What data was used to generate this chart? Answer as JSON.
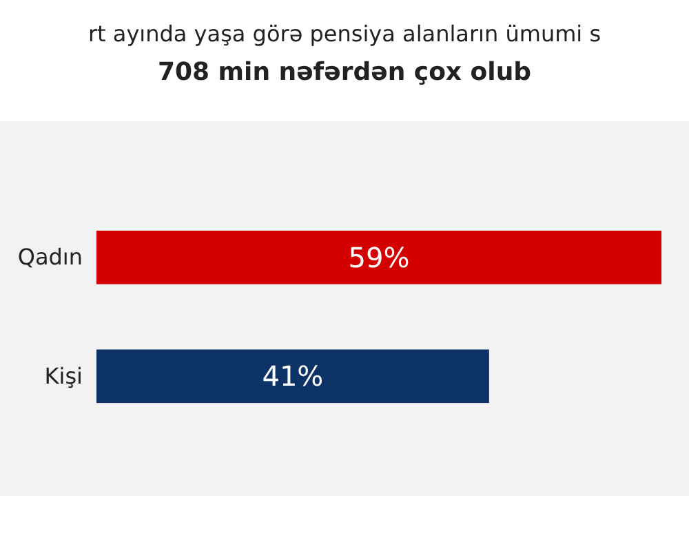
{
  "chart_data": {
    "type": "bar",
    "orientation": "horizontal",
    "title": "rt ayında yaşa görə pensiya alanların ümumi s",
    "subtitle": "708 min nəfərdən çox olub",
    "categories": [
      "Qadın",
      "Kişi"
    ],
    "values": [
      59,
      41
    ],
    "colors": [
      "#d30000",
      "#0c3266"
    ],
    "value_labels": [
      "59%",
      "41%"
    ],
    "tick_labels": "y"
  }
}
